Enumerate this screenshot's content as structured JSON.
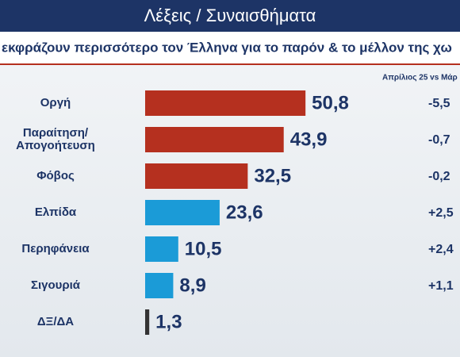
{
  "chart_data": {
    "type": "hbar",
    "title": "Λέξεις / Συναισθήματα",
    "subtitle": "εκφράζουν περισσότερο τον Έλληνα για το παρόν & το μέλλον της χω",
    "change_header": "Απρίλιος 25 vs Μάρ",
    "categories": [
      "Οργή",
      "Παραίτηση/ Απογοήτευση",
      "Φόβος",
      "Ελπίδα",
      "Περηφάνεια",
      "Σιγουριά",
      "ΔΞ/ΔΑ"
    ],
    "values": [
      50.8,
      43.9,
      32.5,
      23.6,
      10.5,
      8.9,
      1.3
    ],
    "value_labels": [
      "50,8",
      "43,9",
      "32,5",
      "23,6",
      "10,5",
      "8,9",
      "1,3"
    ],
    "colors": [
      "#b5301f",
      "#b5301f",
      "#b5301f",
      "#1b9bd7",
      "#1b9bd7",
      "#1b9bd7",
      "#333333"
    ],
    "changes": [
      "-5,5",
      "-0,7",
      "-0,2",
      "+2,5",
      "+2,4",
      "+1,1"
    ]
  }
}
